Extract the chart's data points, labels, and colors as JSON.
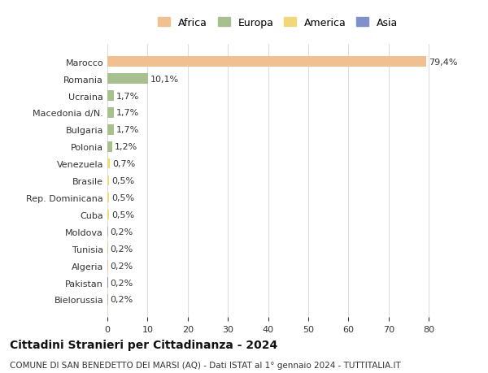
{
  "categories": [
    "Marocco",
    "Romania",
    "Ucraina",
    "Macedonia d/N.",
    "Bulgaria",
    "Polonia",
    "Venezuela",
    "Brasile",
    "Rep. Dominicana",
    "Cuba",
    "Moldova",
    "Tunisia",
    "Algeria",
    "Pakistan",
    "Bielorussia"
  ],
  "values": [
    79.4,
    10.1,
    1.7,
    1.7,
    1.7,
    1.2,
    0.7,
    0.5,
    0.5,
    0.5,
    0.2,
    0.2,
    0.2,
    0.2,
    0.2
  ],
  "labels": [
    "79,4%",
    "10,1%",
    "1,7%",
    "1,7%",
    "1,7%",
    "1,2%",
    "0,7%",
    "0,5%",
    "0,5%",
    "0,5%",
    "0,2%",
    "0,2%",
    "0,2%",
    "0,2%",
    "0,2%"
  ],
  "colors": [
    "#F0C090",
    "#A8C090",
    "#A8C090",
    "#A8C090",
    "#A8C090",
    "#A8C090",
    "#F0D878",
    "#F0D878",
    "#F0D878",
    "#F0D878",
    "#A8C090",
    "#F0C090",
    "#F0C090",
    "#8090C8",
    "#A8C090"
  ],
  "continent_colors": {
    "Africa": "#F0C090",
    "Europa": "#A8C090",
    "America": "#F0D878",
    "Asia": "#8090C8"
  },
  "title": "Cittadini Stranieri per Cittadinanza - 2024",
  "subtitle": "COMUNE DI SAN BENEDETTO DEI MARSI (AQ) - Dati ISTAT al 1° gennaio 2024 - TUTTITALIA.IT",
  "xlim": [
    0,
    85
  ],
  "xticks": [
    0,
    10,
    20,
    30,
    40,
    50,
    60,
    70,
    80
  ],
  "background_color": "#ffffff",
  "grid_color": "#dddddd"
}
